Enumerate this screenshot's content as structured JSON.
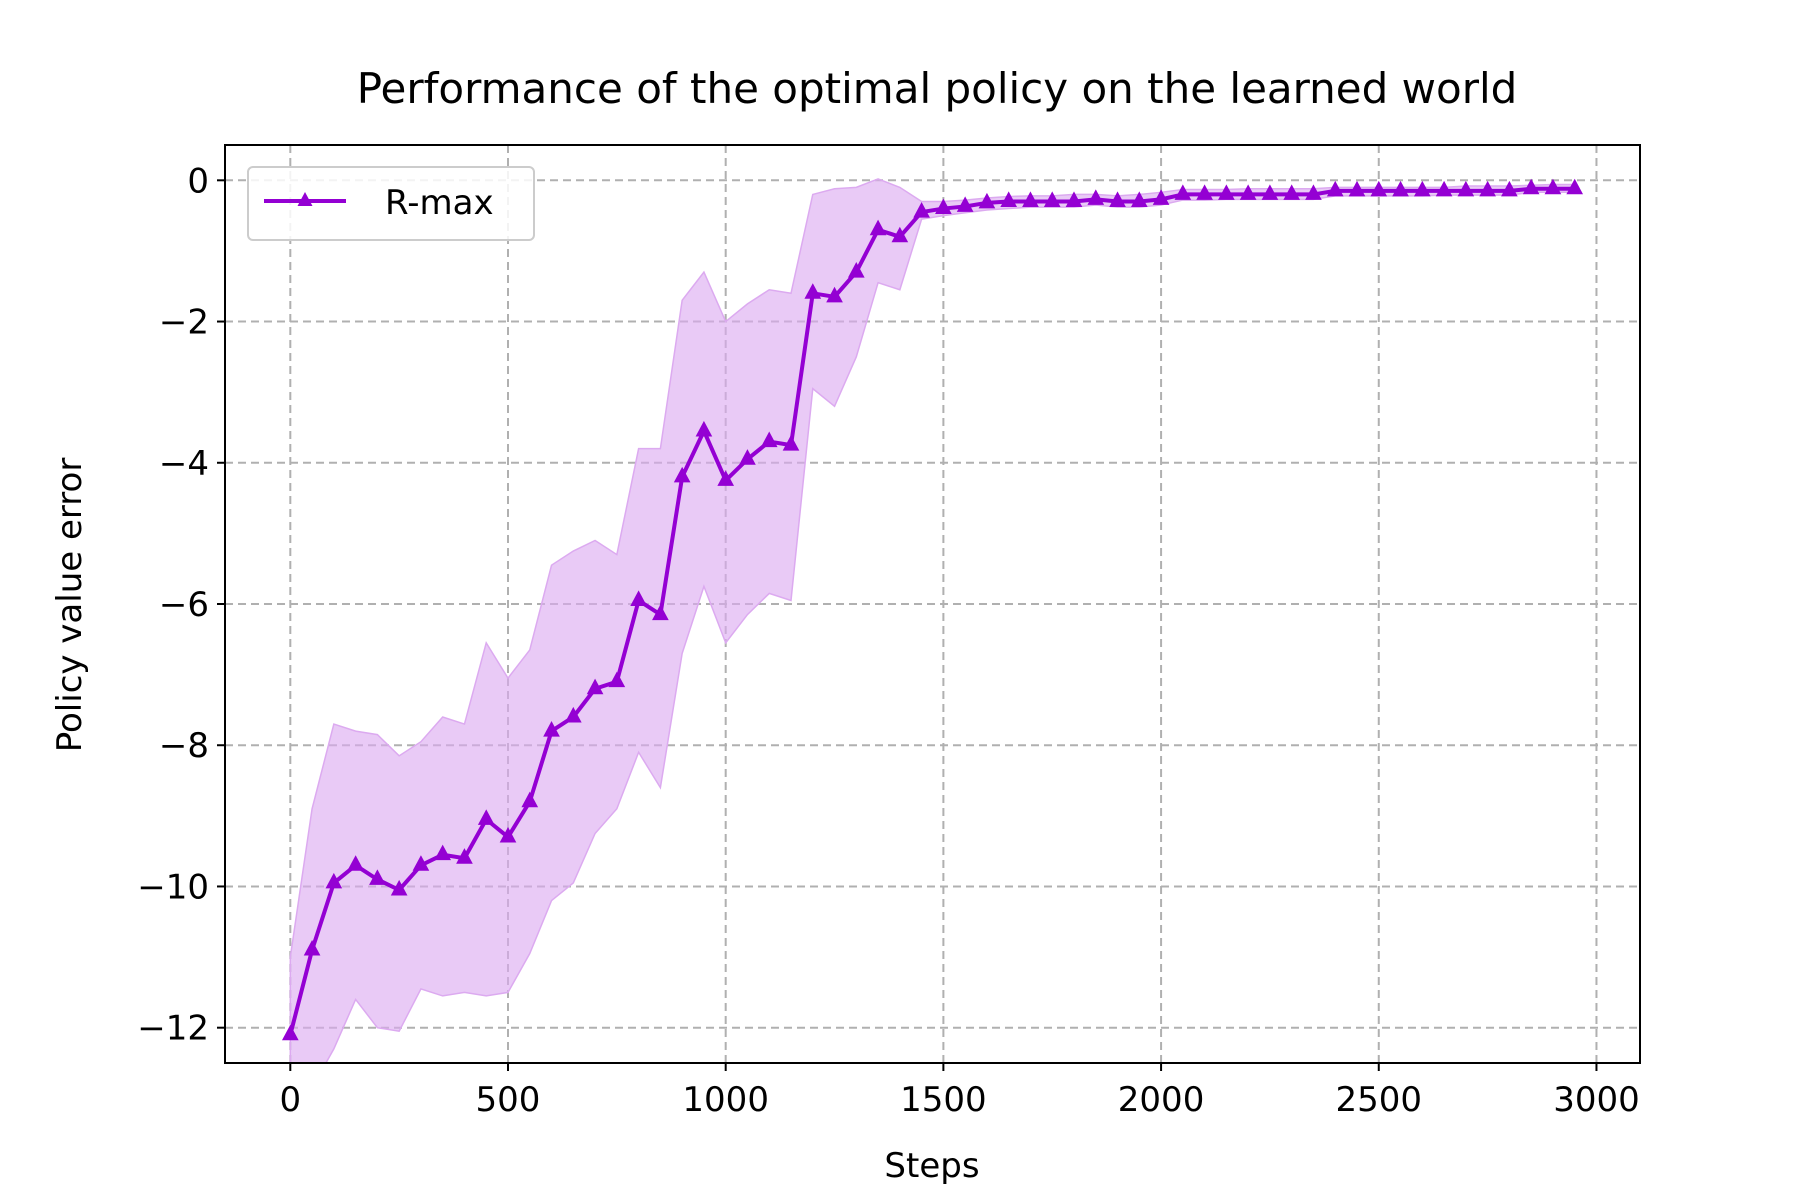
{
  "chart_data": {
    "type": "line",
    "title": "Performance of the optimal policy on the learned world",
    "xlabel": "Steps",
    "ylabel": "Policy value error",
    "xlim": [
      -150,
      3100
    ],
    "ylim": [
      -12.5,
      0.5
    ],
    "xticks": [
      0,
      500,
      1000,
      1500,
      2000,
      2500,
      3000
    ],
    "yticks": [
      0,
      -2,
      -4,
      -6,
      -8,
      -10,
      -12
    ],
    "xtick_labels": [
      "0",
      "500",
      "1000",
      "1500",
      "2000",
      "2500",
      "3000"
    ],
    "ytick_labels": [
      "0",
      "−2",
      "−4",
      "−6",
      "−8",
      "−10",
      "−12"
    ],
    "grid": true,
    "legend_position": "upper-left",
    "series": [
      {
        "name": "R-max",
        "color": "#9400d3",
        "band_color": "#dcaaf0",
        "marker": "triangle-up",
        "x": [
          0,
          50,
          100,
          150,
          200,
          250,
          300,
          350,
          400,
          450,
          500,
          550,
          600,
          650,
          700,
          750,
          800,
          850,
          900,
          950,
          1000,
          1050,
          1100,
          1150,
          1200,
          1250,
          1300,
          1350,
          1400,
          1450,
          1500,
          1550,
          1600,
          1650,
          1700,
          1750,
          1800,
          1850,
          1900,
          1950,
          2000,
          2050,
          2100,
          2150,
          2200,
          2250,
          2300,
          2350,
          2400,
          2450,
          2500,
          2550,
          2600,
          2650,
          2700,
          2750,
          2800,
          2850,
          2900,
          2950
        ],
        "y": [
          -12.1,
          -10.9,
          -9.95,
          -9.7,
          -9.9,
          -10.05,
          -9.7,
          -9.55,
          -9.6,
          -9.05,
          -9.3,
          -8.8,
          -7.8,
          -7.6,
          -7.2,
          -7.1,
          -5.95,
          -6.15,
          -4.2,
          -3.55,
          -4.25,
          -3.95,
          -3.7,
          -3.75,
          -1.6,
          -1.65,
          -1.3,
          -0.7,
          -0.8,
          -0.45,
          -0.4,
          -0.37,
          -0.32,
          -0.3,
          -0.3,
          -0.3,
          -0.3,
          -0.27,
          -0.3,
          -0.3,
          -0.27,
          -0.2,
          -0.2,
          -0.2,
          -0.2,
          -0.2,
          -0.2,
          -0.2,
          -0.15,
          -0.15,
          -0.15,
          -0.15,
          -0.15,
          -0.15,
          -0.15,
          -0.15,
          -0.15,
          -0.12,
          -0.12,
          -0.12
        ],
        "upper": [
          -11.0,
          -8.9,
          -7.7,
          -7.8,
          -7.85,
          -8.15,
          -7.95,
          -7.6,
          -7.7,
          -6.55,
          -7.05,
          -6.65,
          -5.45,
          -5.25,
          -5.1,
          -5.3,
          -3.8,
          -3.8,
          -1.7,
          -1.3,
          -2.0,
          -1.75,
          -1.55,
          -1.6,
          -0.2,
          -0.12,
          -0.1,
          0.02,
          -0.1,
          -0.3,
          -0.3,
          -0.28,
          -0.25,
          -0.23,
          -0.22,
          -0.22,
          -0.2,
          -0.2,
          -0.22,
          -0.2,
          -0.17,
          -0.13,
          -0.13,
          -0.13,
          -0.12,
          -0.12,
          -0.12,
          -0.12,
          -0.1,
          -0.1,
          -0.1,
          -0.1,
          -0.1,
          -0.1,
          -0.08,
          -0.08,
          -0.08,
          -0.07,
          -0.06,
          -0.06
        ],
        "lower": [
          -12.6,
          -12.85,
          -12.3,
          -11.6,
          -12.0,
          -12.05,
          -11.45,
          -11.55,
          -11.5,
          -11.55,
          -11.5,
          -10.95,
          -10.2,
          -9.95,
          -9.25,
          -8.9,
          -8.1,
          -8.6,
          -6.7,
          -5.75,
          -6.55,
          -6.15,
          -5.85,
          -5.95,
          -2.95,
          -3.2,
          -2.5,
          -1.45,
          -1.55,
          -0.55,
          -0.5,
          -0.46,
          -0.42,
          -0.4,
          -0.38,
          -0.38,
          -0.38,
          -0.35,
          -0.38,
          -0.38,
          -0.35,
          -0.28,
          -0.28,
          -0.27,
          -0.27,
          -0.27,
          -0.27,
          -0.27,
          -0.22,
          -0.22,
          -0.22,
          -0.22,
          -0.22,
          -0.21,
          -0.21,
          -0.21,
          -0.21,
          -0.17,
          -0.17,
          -0.17
        ]
      }
    ]
  }
}
